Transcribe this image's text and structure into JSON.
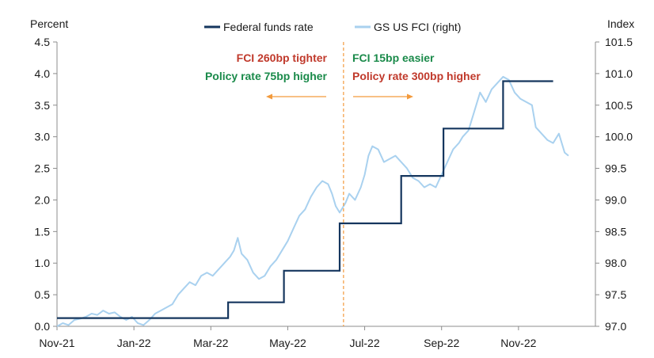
{
  "chart_data": {
    "type": "line",
    "left_axis": {
      "title": "Percent",
      "min": 0,
      "max": 4.5,
      "ticks": [
        "0.0",
        "0.5",
        "1.0",
        "1.5",
        "2.0",
        "2.5",
        "3.0",
        "3.5",
        "4.0",
        "4.5"
      ]
    },
    "right_axis": {
      "title": "Index",
      "min": 97.0,
      "max": 101.5,
      "ticks": [
        "97.0",
        "97.5",
        "98.0",
        "98.5",
        "99.0",
        "99.5",
        "100.0",
        "100.5",
        "101.0",
        "101.5"
      ]
    },
    "x_axis": {
      "min": 0,
      "max": 14,
      "ticks": [
        {
          "label": "Nov-21",
          "pos": 0
        },
        {
          "label": "Jan-22",
          "pos": 2
        },
        {
          "label": "Mar-22",
          "pos": 4
        },
        {
          "label": "May-22",
          "pos": 6
        },
        {
          "label": "Jul-22",
          "pos": 8
        },
        {
          "label": "Sep-22",
          "pos": 10
        },
        {
          "label": "Nov-22",
          "pos": 12
        }
      ]
    },
    "series": [
      {
        "name": "Federal funds rate",
        "axis": "left",
        "color": "#15365e",
        "step": true,
        "points": [
          [
            0,
            0.13
          ],
          [
            4.45,
            0.13
          ],
          [
            4.45,
            0.38
          ],
          [
            5.9,
            0.38
          ],
          [
            5.9,
            0.88
          ],
          [
            7.35,
            0.88
          ],
          [
            7.35,
            1.63
          ],
          [
            8.95,
            1.63
          ],
          [
            8.95,
            2.38
          ],
          [
            10.05,
            2.38
          ],
          [
            10.05,
            3.13
          ],
          [
            11.6,
            3.13
          ],
          [
            11.6,
            3.88
          ],
          [
            12.9,
            3.88
          ]
        ]
      },
      {
        "name": "GS US FCI (right)",
        "axis": "right",
        "color": "#a9d1ef",
        "step": false,
        "points": [
          [
            0,
            97.0
          ],
          [
            0.15,
            97.05
          ],
          [
            0.3,
            97.02
          ],
          [
            0.45,
            97.1
          ],
          [
            0.6,
            97.12
          ],
          [
            0.75,
            97.15
          ],
          [
            0.9,
            97.2
          ],
          [
            1.05,
            97.18
          ],
          [
            1.2,
            97.25
          ],
          [
            1.35,
            97.2
          ],
          [
            1.5,
            97.22
          ],
          [
            1.65,
            97.15
          ],
          [
            1.8,
            97.1
          ],
          [
            1.95,
            97.15
          ],
          [
            2.1,
            97.05
          ],
          [
            2.25,
            97.02
          ],
          [
            2.4,
            97.1
          ],
          [
            2.55,
            97.2
          ],
          [
            2.7,
            97.25
          ],
          [
            2.85,
            97.3
          ],
          [
            3.0,
            97.35
          ],
          [
            3.15,
            97.5
          ],
          [
            3.3,
            97.6
          ],
          [
            3.45,
            97.7
          ],
          [
            3.6,
            97.65
          ],
          [
            3.75,
            97.8
          ],
          [
            3.9,
            97.85
          ],
          [
            4.05,
            97.8
          ],
          [
            4.2,
            97.9
          ],
          [
            4.35,
            98.0
          ],
          [
            4.5,
            98.1
          ],
          [
            4.6,
            98.2
          ],
          [
            4.7,
            98.4
          ],
          [
            4.8,
            98.15
          ],
          [
            4.95,
            98.05
          ],
          [
            5.1,
            97.85
          ],
          [
            5.25,
            97.75
          ],
          [
            5.4,
            97.8
          ],
          [
            5.55,
            97.95
          ],
          [
            5.7,
            98.05
          ],
          [
            5.85,
            98.2
          ],
          [
            6.0,
            98.35
          ],
          [
            6.15,
            98.55
          ],
          [
            6.3,
            98.75
          ],
          [
            6.45,
            98.85
          ],
          [
            6.6,
            99.05
          ],
          [
            6.75,
            99.2
          ],
          [
            6.9,
            99.3
          ],
          [
            7.05,
            99.25
          ],
          [
            7.15,
            99.1
          ],
          [
            7.25,
            98.9
          ],
          [
            7.35,
            98.8
          ],
          [
            7.5,
            98.95
          ],
          [
            7.6,
            99.1
          ],
          [
            7.75,
            99.0
          ],
          [
            7.9,
            99.2
          ],
          [
            8.0,
            99.4
          ],
          [
            8.1,
            99.7
          ],
          [
            8.2,
            99.85
          ],
          [
            8.35,
            99.8
          ],
          [
            8.5,
            99.6
          ],
          [
            8.65,
            99.65
          ],
          [
            8.8,
            99.7
          ],
          [
            8.95,
            99.6
          ],
          [
            9.1,
            99.5
          ],
          [
            9.25,
            99.35
          ],
          [
            9.4,
            99.3
          ],
          [
            9.55,
            99.2
          ],
          [
            9.7,
            99.25
          ],
          [
            9.85,
            99.2
          ],
          [
            10.0,
            99.4
          ],
          [
            10.15,
            99.6
          ],
          [
            10.3,
            99.8
          ],
          [
            10.45,
            99.9
          ],
          [
            10.55,
            100.0
          ],
          [
            10.7,
            100.1
          ],
          [
            10.85,
            100.4
          ],
          [
            11.0,
            100.7
          ],
          [
            11.15,
            100.55
          ],
          [
            11.3,
            100.75
          ],
          [
            11.45,
            100.85
          ],
          [
            11.6,
            100.95
          ],
          [
            11.75,
            100.9
          ],
          [
            11.9,
            100.7
          ],
          [
            12.05,
            100.6
          ],
          [
            12.2,
            100.55
          ],
          [
            12.35,
            100.5
          ],
          [
            12.45,
            100.15
          ],
          [
            12.6,
            100.05
          ],
          [
            12.75,
            99.95
          ],
          [
            12.9,
            99.9
          ],
          [
            13.05,
            100.05
          ],
          [
            13.2,
            99.75
          ],
          [
            13.3,
            99.7
          ]
        ]
      }
    ],
    "divider_x": 7.45,
    "annotations": {
      "left_line1": "FCI 260bp tighter",
      "left_line2": "Policy rate 75bp higher",
      "right_line1": "FCI 15bp easier",
      "right_line2": "Policy rate 300bp higher"
    },
    "colors": {
      "red": "#c0392b",
      "green": "#1a8a4a",
      "orange": "#f39a3c",
      "axis": "#8c8c8c"
    }
  }
}
